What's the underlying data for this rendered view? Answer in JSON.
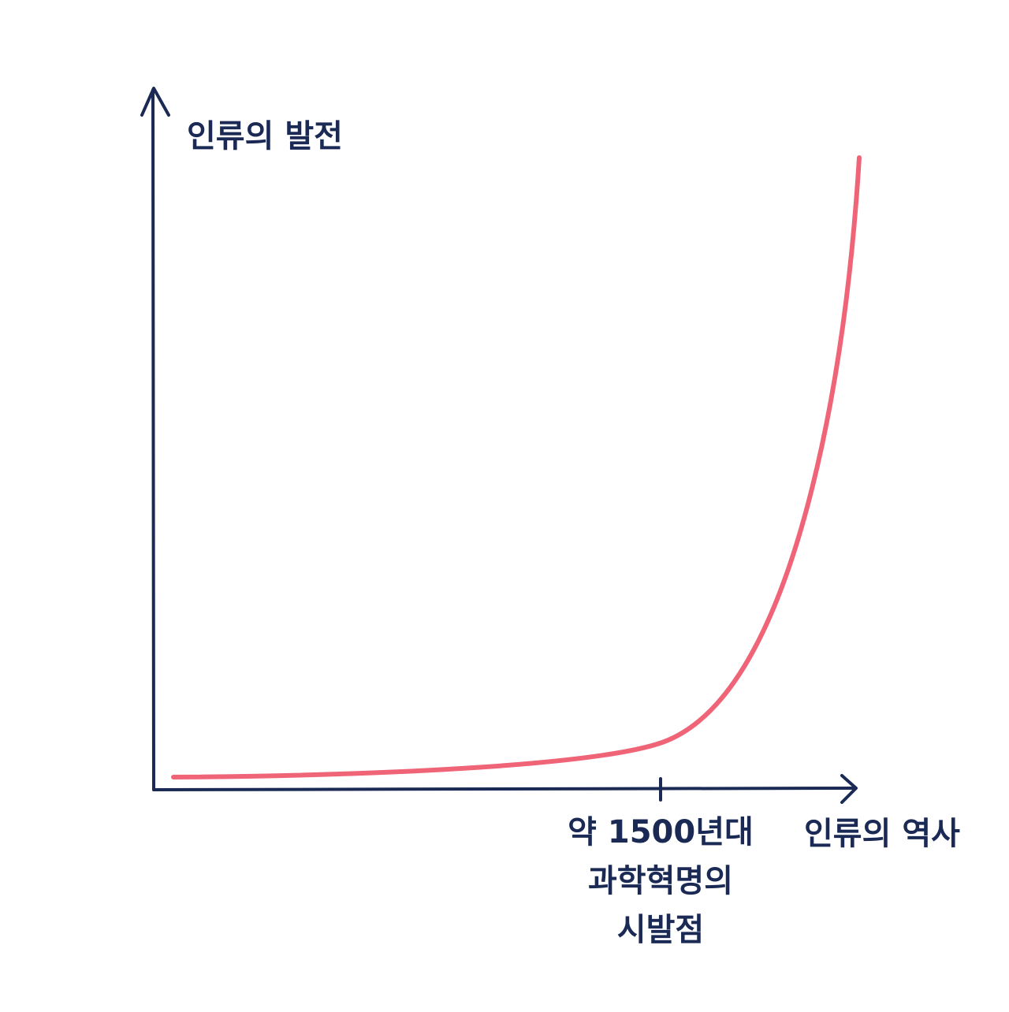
{
  "y_axis_label": "인류의 발전",
  "x_axis_label": "인류의 역사",
  "annotation": [
    "약 1500년대",
    "과학혁명의",
    "시발점"
  ]
}
